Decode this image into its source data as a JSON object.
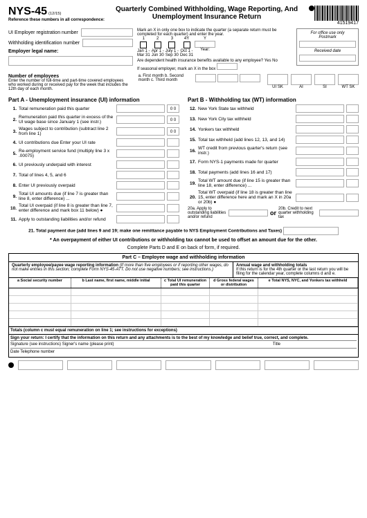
{
  "form": {
    "id": "NYS-45",
    "rev": "(12/15)",
    "title": "Quarterly Combined Withholding, Wage Reporting, And Unemployment Insurance Return",
    "barcode": "41519417"
  },
  "ref": "Reference these numbers in all correspondence:",
  "fields": {
    "uireg": "UI Employer registration number",
    "withid": "Withholding identification number",
    "legal": "Employer legal name:",
    "markx": "Mark an X in only one box to indicate the quarter (a separate return must be completed for each quarter) and enter the year.",
    "dep": "Are dependent health insurance benefits available to any employee?  Yes  No",
    "seasonal": "If seasonal employer, mark an X in the box"
  },
  "quarters": [
    "1",
    "2",
    "3",
    "4Y",
    "Y"
  ],
  "qdates": [
    [
      "Jan 1 -",
      "Mar 31"
    ],
    [
      "Apr 1 -",
      "Jun 30"
    ],
    [
      "July 1 -",
      "Sep 30"
    ],
    [
      "Oct 1 -",
      "Dec 31"
    ],
    [
      "Year:",
      ""
    ]
  ],
  "office": {
    "hdr": "For office use only",
    "post": "Postmark",
    "recv": "Received date"
  },
  "emp": {
    "hdr": "Number of employees",
    "txt": "Enter the number of full-time and part-time covered employees who worked during or received pay for the week that includes the 12th day of each month.",
    "months": "a. First month  b. Second month  c. Third month"
  },
  "sk": [
    "UI SK",
    "AI",
    "SI",
    "WT SK"
  ],
  "partA": {
    "title": "Part A - Unemployment insurance (UI) information",
    "lines": [
      {
        "n": "1.",
        "t": "Total remuneration paid this quarter",
        "dec": "0 0"
      },
      {
        "n": "2.",
        "t": "Remuneration paid this quarter in excess of the UI wage base since January 1 (see instr.)",
        "dec": "0 0"
      },
      {
        "n": "3.",
        "t": "Wages subject to contribution (subtract line 2 from line 1)",
        "dec": "0 0"
      },
      {
        "n": "4.",
        "t": "UI contributions due Enter your UI rate",
        "pct": "%"
      },
      {
        "n": "5.",
        "t": "Re-employment service fund (multiply line 3 x .00075)"
      },
      {
        "n": "6.",
        "t": "UI previously underpaid with interest"
      },
      {
        "n": "7.",
        "t": "Total of lines 4, 5, and 6"
      },
      {
        "n": "8.",
        "t": "Enter UI previously overpaid"
      },
      {
        "n": "9.",
        "t": "Total UI amounts due (if line 7 is greater than line 8, enter difference)   ..."
      },
      {
        "n": "10.",
        "t": "Total UI overpaid (if line 8 is greater than line 7, enter difference and mark box 11 below)   ●"
      },
      {
        "n": "11.",
        "t": "Apply to outstanding liabilities and/or refund"
      }
    ]
  },
  "partB": {
    "title": "Part B - Withholding tax (WT) information",
    "lines": [
      {
        "n": "12.",
        "t": "New York State tax withheld"
      },
      {
        "n": "13.",
        "t": "New York City tax withheld"
      },
      {
        "n": "14.",
        "t": "Yonkers tax withheld"
      },
      {
        "n": "15.",
        "t": "Total tax withheld (add lines 12, 13, and 14)"
      },
      {
        "n": "16.",
        "t": "WT credit from previous quarter's return (see instr.)"
      },
      {
        "n": "17.",
        "t": "Form NYS-1 payments made for quarter"
      },
      {
        "n": "18.",
        "t": "Total payments (add lines 16 and 17)"
      },
      {
        "n": "19.",
        "t": "Total WT amount due (if line 15 is greater than line 18, enter difference)   ..."
      },
      {
        "n": "20.",
        "t": "Total WT overpaid (if line 18 is greater than line 15, enter difference here and mark an X in 20a or 20b)   ●"
      }
    ],
    "l20a": "20a. Apply to outstanding liabilities and/or refund",
    "or": "or",
    "l20b": "20b. Credit to next quarter withholding tax"
  },
  "l21": "21. Total payment due (add lines 9 and 19; make one remittance payable to NYS Employment Contributions and Taxes)",
  "note1": "* An overpayment of either UI contributions or withholding tax cannot be used to offset an amount due for the other.",
  "note2": "Complete Parts D and E on back of form, if required.",
  "partC": {
    "title": "Part C – Employee wage and withholding information",
    "info_l_b": "Quarterly employee/payee wage reporting information",
    "info_l": " (If more than five employees or if reporting other wages, do not make entries in this section; complete Form NYS-45-ATT. Do not use negative numbers; see instructions.)",
    "info_r_b": "Annual wage and withholding totals",
    "info_r": "If this return is for the 4th quarter or the last return you will be filing for the calendar year, complete columns d and e.",
    "cols": [
      "a Social security number",
      "b Last name, first name, middle initial",
      "c Total UI remuneration paid this quarter",
      "d Gross federal wages or distribution",
      "e Total NYS, NYC, and Yonkers tax withheld"
    ],
    "totals": "Totals (column c must equal remuneration on line 1; see instructions for exceptions)"
  },
  "sign": {
    "cert": "Sign your return: I certify that the information on this return and any attachments is to the best of my knowledge and belief true, correct, and complete.",
    "sig": "Signature (see instructions)  Signer's name (please print)",
    "title": "Title",
    "date": "Date  Telephone number"
  }
}
